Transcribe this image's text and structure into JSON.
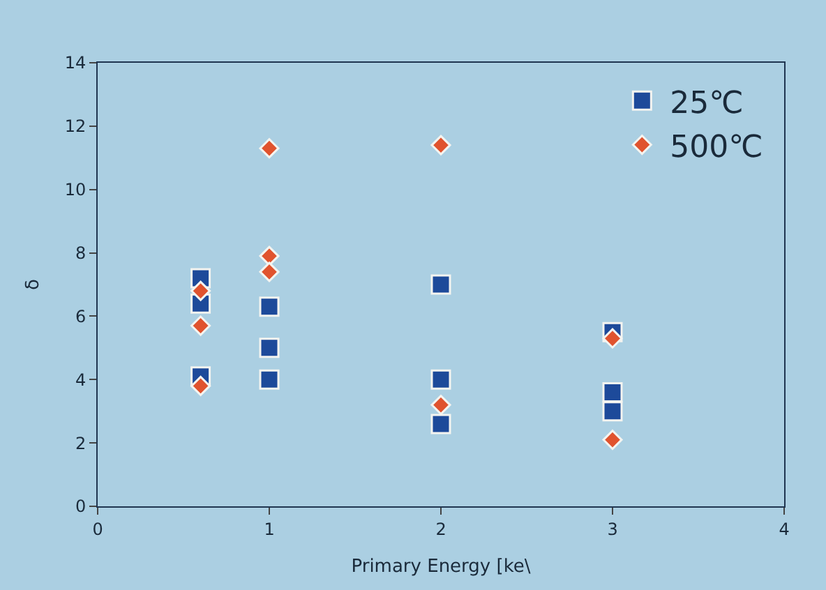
{
  "chart_data": {
    "type": "scatter",
    "xlabel": "Primary Energy [ke\\",
    "ylabel": "δ",
    "xlim": [
      0,
      4
    ],
    "xticks": [
      0,
      1,
      2,
      3,
      4
    ],
    "ylim": [
      0,
      14
    ],
    "yticks": [
      0,
      2,
      4,
      6,
      8,
      10,
      12,
      14
    ],
    "grid": false,
    "legend": "top right",
    "series": [
      {
        "name": "25℃",
        "color": "#1d4a9a",
        "marker": "square",
        "x": [
          0.6,
          0.6,
          0.6,
          1,
          1,
          1,
          2,
          2,
          2,
          3,
          3,
          3
        ],
        "values": [
          7.2,
          6.4,
          4.1,
          6.3,
          5.0,
          4.0,
          7.0,
          4.0,
          2.6,
          5.5,
          3.6,
          3.0
        ]
      },
      {
        "name": "500℃",
        "color": "#e0532e",
        "marker": "diamond",
        "x": [
          0.6,
          0.6,
          0.6,
          1,
          1,
          1,
          2,
          2,
          3,
          3
        ],
        "values": [
          6.8,
          5.7,
          3.8,
          11.3,
          7.9,
          7.4,
          11.4,
          3.2,
          5.3,
          2.1
        ]
      }
    ]
  }
}
